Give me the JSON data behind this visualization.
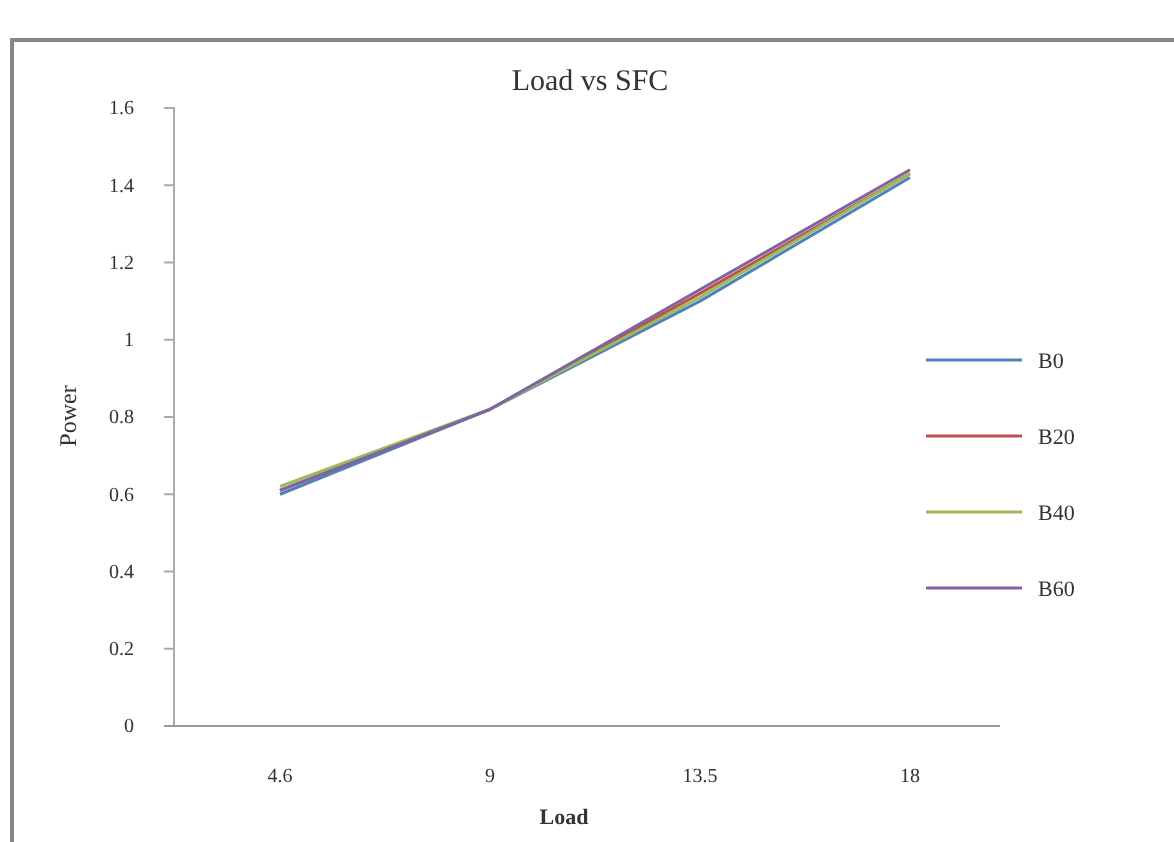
{
  "chart_data": {
    "type": "line",
    "title": "Load vs SFC",
    "xlabel": "Load",
    "ylabel": "Power",
    "categories": [
      "4.6",
      "9",
      "13.5",
      "18"
    ],
    "series": [
      {
        "name": "B0",
        "color": "#4f81bd",
        "values": [
          0.6,
          0.82,
          1.1,
          1.42
        ]
      },
      {
        "name": "B20",
        "color": "#c0504d",
        "values": [
          0.61,
          0.82,
          1.12,
          1.43
        ]
      },
      {
        "name": "B40",
        "color": "#9bbb59",
        "values": [
          0.62,
          0.82,
          1.11,
          1.43
        ]
      },
      {
        "name": "B60",
        "color": "#8064a2",
        "values": [
          0.61,
          0.82,
          1.13,
          1.44
        ]
      }
    ],
    "ylim": [
      0,
      1.6
    ],
    "yticks": [
      0,
      0.2,
      0.4,
      0.6,
      0.8,
      1,
      1.2,
      1.4,
      1.6
    ],
    "legend": "right",
    "line_style": "solid"
  }
}
